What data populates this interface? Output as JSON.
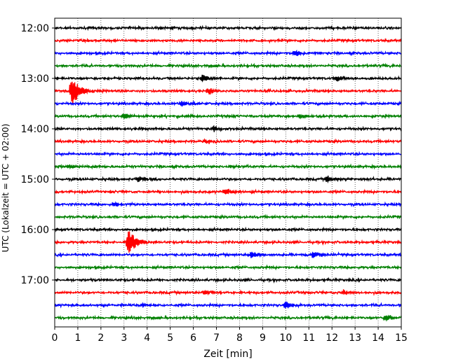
{
  "chart_data": {
    "type": "line",
    "title": "",
    "xlabel": "Zeit  [min]",
    "ylabel": "UTC (Lokalzeit = UTC + 02:00)",
    "xlim": [
      0,
      15
    ],
    "x_ticks": [
      0,
      1,
      2,
      3,
      4,
      5,
      6,
      7,
      8,
      9,
      10,
      11,
      12,
      13,
      14,
      15
    ],
    "x_tick_labels": [
      "0",
      "1",
      "2",
      "3",
      "4",
      "5",
      "6",
      "7",
      "8",
      "9",
      "10",
      "11",
      "12",
      "13",
      "14",
      "15"
    ],
    "y_tick_labels": [
      "12:00",
      "13:00",
      "14:00",
      "15:00",
      "16:00",
      "17:00"
    ],
    "trace_interval_min": 15,
    "grid": "vertical dotted at each minute",
    "legend": "none",
    "color_cycle": [
      "#000000",
      "#ff0000",
      "#0000ff",
      "#008000"
    ],
    "traces": [
      {
        "start": "12:00",
        "color": "#000000",
        "events": []
      },
      {
        "start": "12:15",
        "color": "#ff0000",
        "events": []
      },
      {
        "start": "12:30",
        "color": "#0000ff",
        "events": [
          {
            "t": 10.4,
            "amp": 0.25
          }
        ]
      },
      {
        "start": "12:45",
        "color": "#008000",
        "events": []
      },
      {
        "start": "13:00",
        "color": "#000000",
        "events": [
          {
            "t": 6.4,
            "amp": 0.35
          },
          {
            "t": 12.2,
            "amp": 0.25
          }
        ]
      },
      {
        "start": "13:15",
        "color": "#ff0000",
        "events": [
          {
            "t": 0.75,
            "amp": 1.3
          },
          {
            "t": 6.6,
            "amp": 0.3
          }
        ]
      },
      {
        "start": "13:30",
        "color": "#0000ff",
        "events": [
          {
            "t": 5.5,
            "amp": 0.3
          }
        ]
      },
      {
        "start": "13:45",
        "color": "#008000",
        "events": [
          {
            "t": 3.0,
            "amp": 0.3
          },
          {
            "t": 10.6,
            "amp": 0.2
          }
        ]
      },
      {
        "start": "14:00",
        "color": "#000000",
        "events": [
          {
            "t": 6.9,
            "amp": 0.25
          }
        ]
      },
      {
        "start": "14:15",
        "color": "#ff0000",
        "events": [
          {
            "t": 6.5,
            "amp": 0.2
          }
        ]
      },
      {
        "start": "14:30",
        "color": "#0000ff",
        "events": []
      },
      {
        "start": "14:45",
        "color": "#008000",
        "events": [
          {
            "t": 0.6,
            "amp": 0.2
          },
          {
            "t": 7.6,
            "amp": 0.2
          }
        ]
      },
      {
        "start": "15:00",
        "color": "#000000",
        "events": [
          {
            "t": 3.6,
            "amp": 0.25
          },
          {
            "t": 11.8,
            "amp": 0.3
          }
        ]
      },
      {
        "start": "15:15",
        "color": "#ff0000",
        "events": [
          {
            "t": 7.4,
            "amp": 0.3
          }
        ]
      },
      {
        "start": "15:30",
        "color": "#0000ff",
        "events": [
          {
            "t": 2.6,
            "amp": 0.2
          }
        ]
      },
      {
        "start": "15:45",
        "color": "#008000",
        "events": []
      },
      {
        "start": "16:00",
        "color": "#000000",
        "events": []
      },
      {
        "start": "16:15",
        "color": "#ff0000",
        "events": [
          {
            "t": 3.2,
            "amp": 1.2
          }
        ]
      },
      {
        "start": "16:30",
        "color": "#0000ff",
        "events": [
          {
            "t": 8.5,
            "amp": 0.4
          },
          {
            "t": 11.2,
            "amp": 0.3
          }
        ]
      },
      {
        "start": "16:45",
        "color": "#008000",
        "events": []
      },
      {
        "start": "17:00",
        "color": "#000000",
        "events": []
      },
      {
        "start": "17:15",
        "color": "#ff0000",
        "events": [
          {
            "t": 6.5,
            "amp": 0.25
          },
          {
            "t": 12.5,
            "amp": 0.2
          }
        ]
      },
      {
        "start": "17:30",
        "color": "#0000ff",
        "events": [
          {
            "t": 3.8,
            "amp": 0.2
          },
          {
            "t": 10.0,
            "amp": 0.3
          }
        ]
      },
      {
        "start": "17:45",
        "color": "#008000",
        "events": [
          {
            "t": 14.3,
            "amp": 0.25
          }
        ]
      }
    ]
  }
}
